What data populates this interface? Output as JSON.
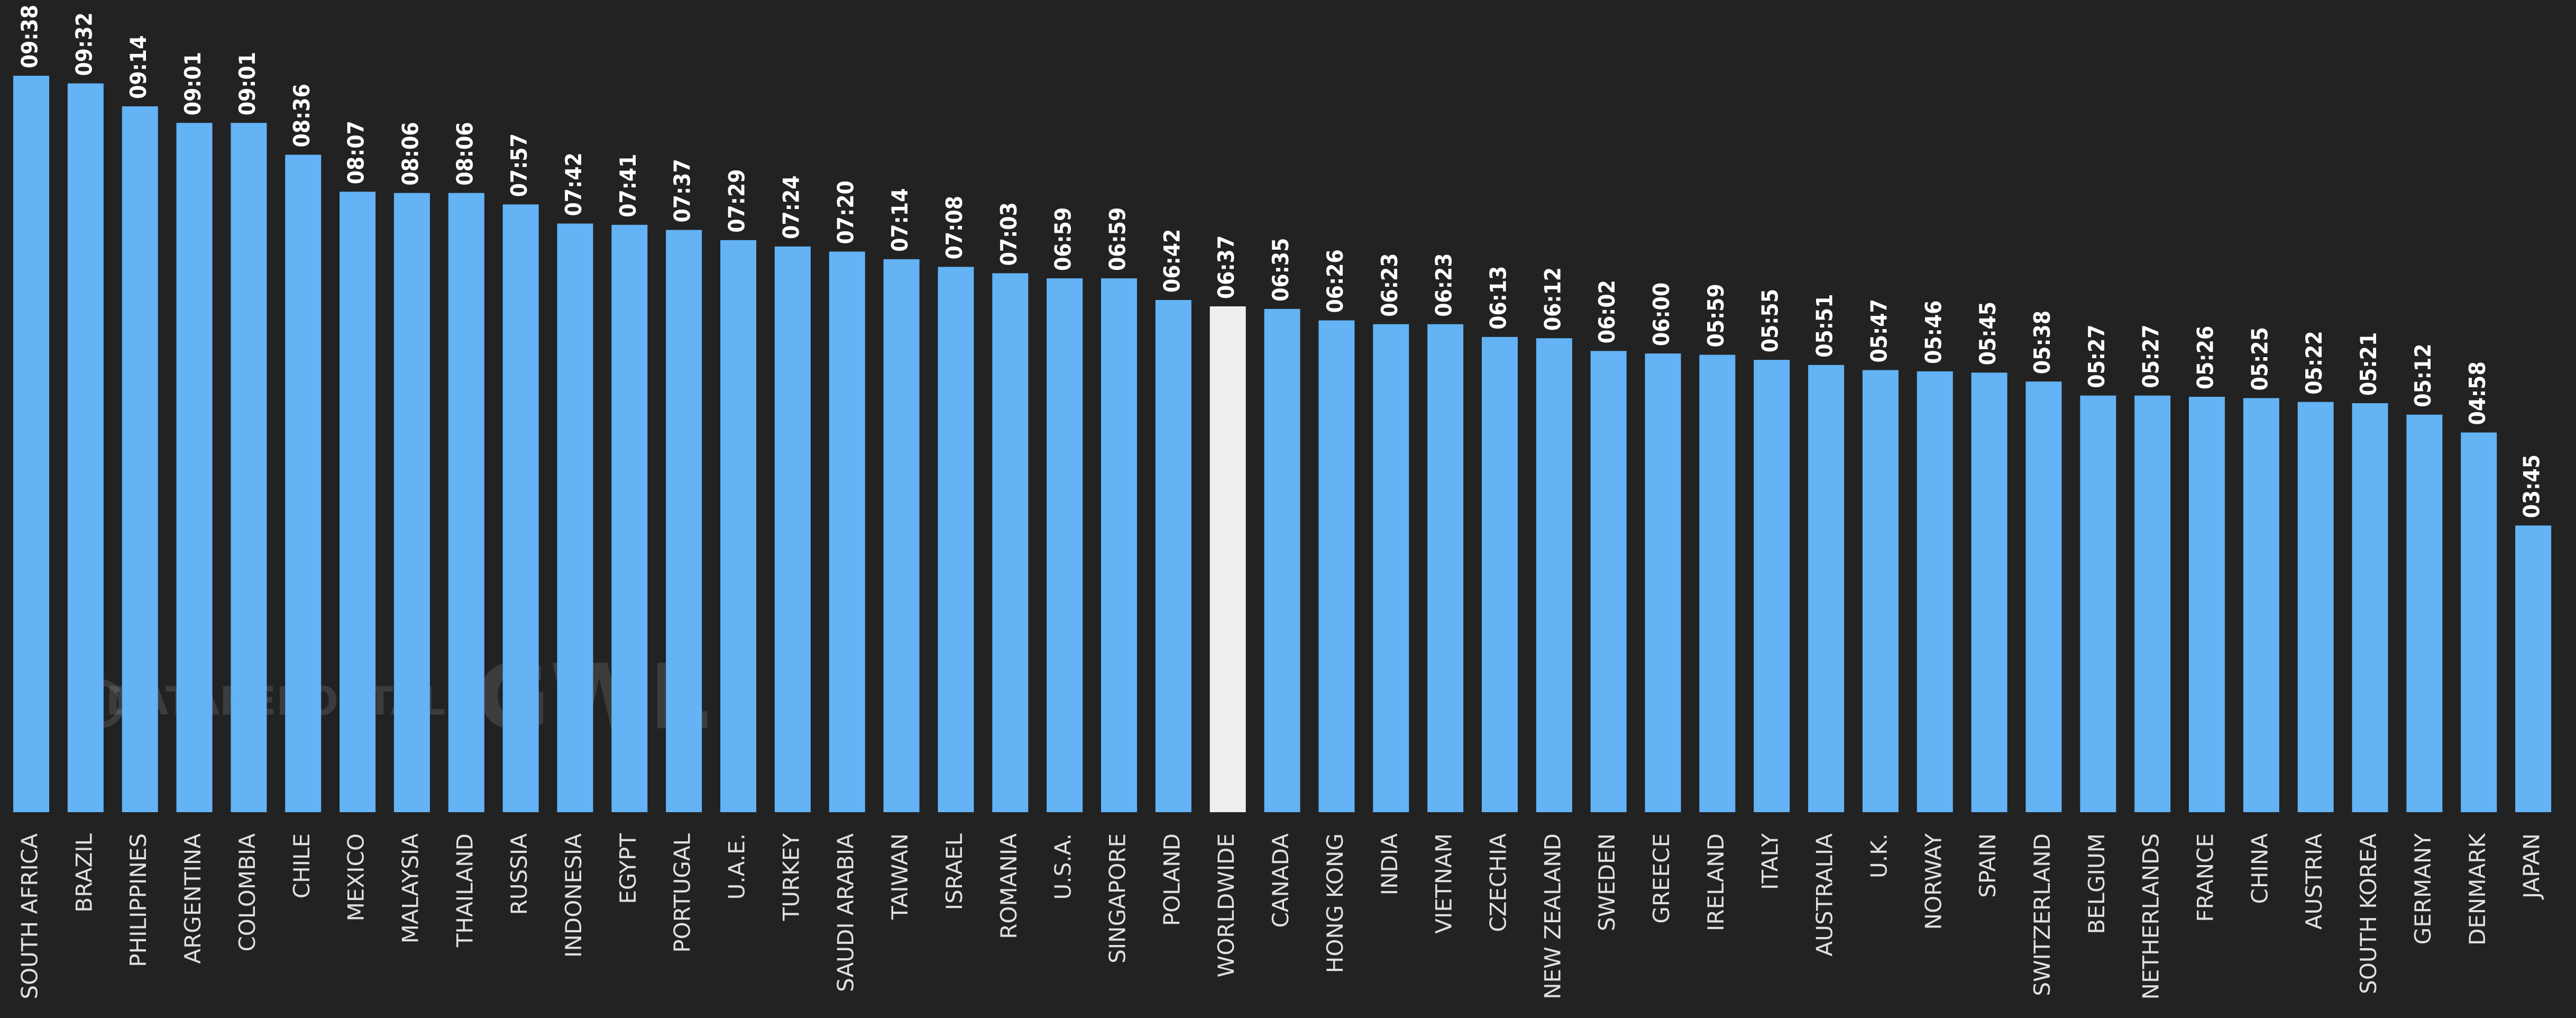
{
  "chart_data": {
    "type": "bar",
    "categories": [
      "SOUTH AFRICA",
      "BRAZIL",
      "PHILIPPINES",
      "ARGENTINA",
      "COLOMBIA",
      "CHILE",
      "MEXICO",
      "MALAYSIA",
      "THAILAND",
      "RUSSIA",
      "INDONESIA",
      "EGYPT",
      "PORTUGAL",
      "U.A.E.",
      "TURKEY",
      "SAUDI ARABIA",
      "TAIWAN",
      "ISRAEL",
      "ROMANIA",
      "U.S.A.",
      "SINGAPORE",
      "POLAND",
      "WORLDWIDE",
      "CANADA",
      "HONG KONG",
      "INDIA",
      "VIETNAM",
      "CZECHIA",
      "NEW ZEALAND",
      "SWEDEN",
      "GREECE",
      "IRELAND",
      "ITALY",
      "AUSTRALIA",
      "U.K.",
      "NORWAY",
      "SPAIN",
      "SWITZERLAND",
      "BELGIUM",
      "NETHERLANDS",
      "FRANCE",
      "CHINA",
      "AUSTRIA",
      "SOUTH KOREA",
      "GERMANY",
      "DENMARK",
      "JAPAN"
    ],
    "values": [
      578,
      572,
      554,
      541,
      541,
      516,
      487,
      486,
      486,
      477,
      462,
      461,
      457,
      449,
      444,
      440,
      434,
      428,
      423,
      419,
      419,
      402,
      397,
      395,
      386,
      383,
      383,
      373,
      372,
      362,
      360,
      359,
      355,
      351,
      347,
      346,
      345,
      338,
      327,
      327,
      326,
      325,
      322,
      321,
      312,
      298,
      225
    ],
    "value_labels": [
      "09:38",
      "09:32",
      "09:14",
      "09:01",
      "09:01",
      "08:36",
      "08:07",
      "08:06",
      "08:06",
      "07:57",
      "07:42",
      "07:41",
      "07:37",
      "07:29",
      "07:24",
      "07:20",
      "07:14",
      "07:08",
      "07:03",
      "06:59",
      "06:59",
      "06:42",
      "06:37",
      "06:35",
      "06:26",
      "06:23",
      "06:23",
      "06:13",
      "06:12",
      "06:02",
      "06:00",
      "05:59",
      "05:55",
      "05:51",
      "05:47",
      "05:46",
      "05:45",
      "05:38",
      "05:27",
      "05:27",
      "05:26",
      "05:25",
      "05:22",
      "05:21",
      "05:12",
      "04:58",
      "03:45"
    ],
    "colors": [
      "#63b3f5",
      "#63b3f5",
      "#63b3f5",
      "#63b3f5",
      "#63b3f5",
      "#63b3f5",
      "#63b3f5",
      "#63b3f5",
      "#63b3f5",
      "#63b3f5",
      "#63b3f5",
      "#63b3f5",
      "#63b3f5",
      "#63b3f5",
      "#63b3f5",
      "#63b3f5",
      "#63b3f5",
      "#63b3f5",
      "#63b3f5",
      "#63b3f5",
      "#63b3f5",
      "#63b3f5",
      "#efefef",
      "#63b3f5",
      "#63b3f5",
      "#63b3f5",
      "#63b3f5",
      "#63b3f5",
      "#63b3f5",
      "#63b3f5",
      "#63b3f5",
      "#63b3f5",
      "#63b3f5",
      "#63b3f5",
      "#63b3f5",
      "#63b3f5",
      "#63b3f5",
      "#63b3f5",
      "#63b3f5",
      "#63b3f5",
      "#63b3f5",
      "#63b3f5",
      "#63b3f5",
      "#63b3f5",
      "#63b3f5",
      "#63b3f5",
      "#63b3f5"
    ],
    "watermarks": [
      "DATAREPORTAL",
      "GWI."
    ]
  }
}
